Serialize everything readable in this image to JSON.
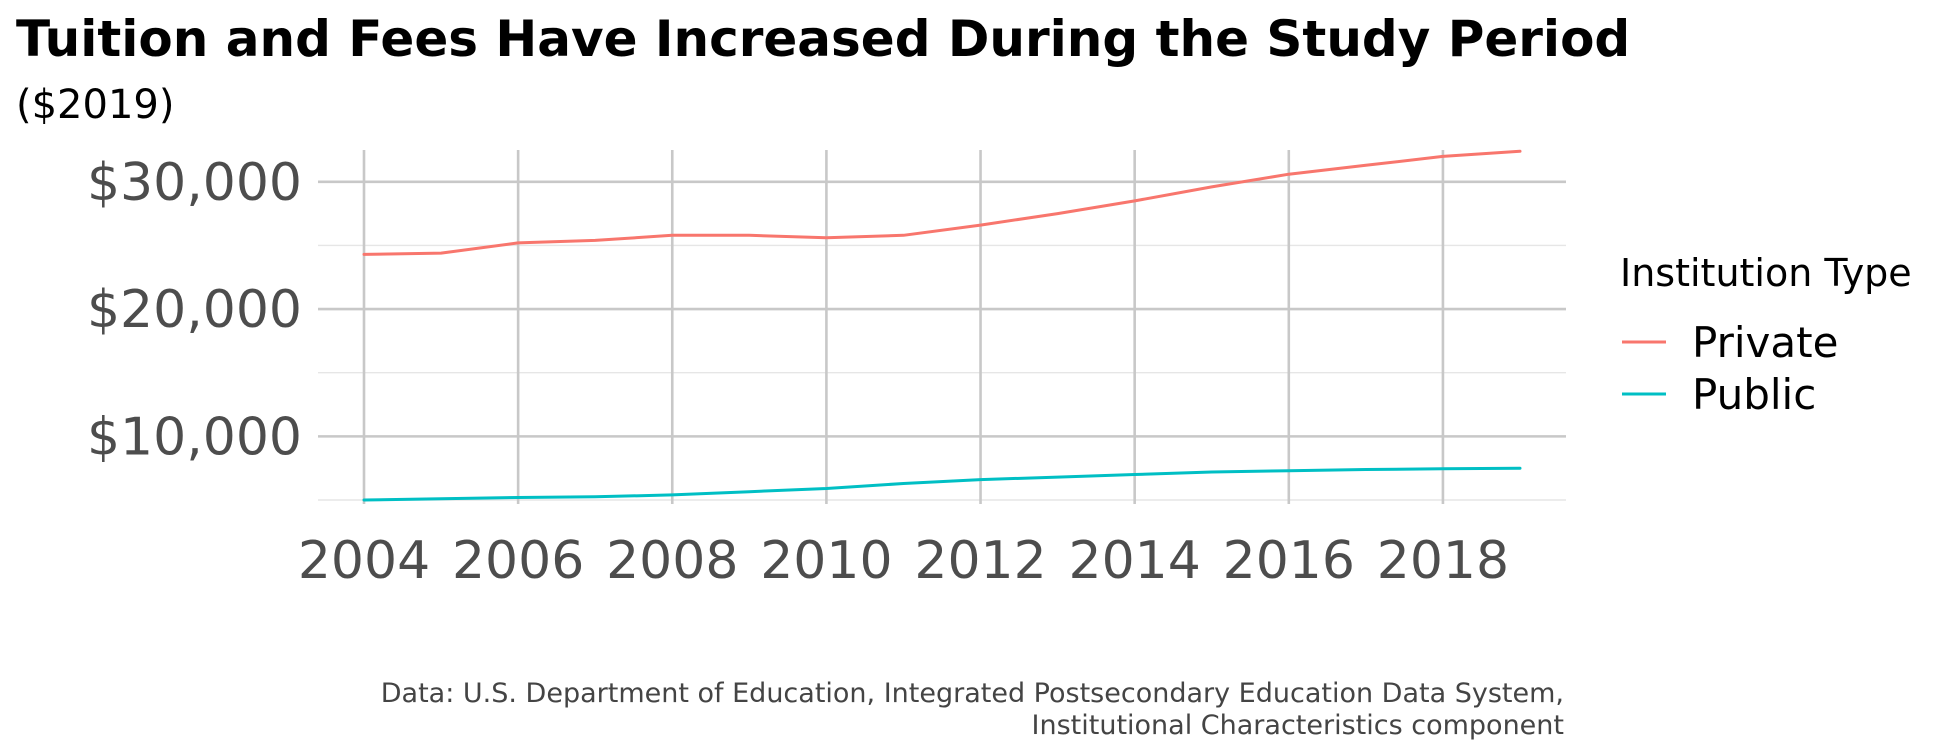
{
  "chart_data": {
    "type": "line",
    "title": "Tuition and Fees Have Increased During the Study Period",
    "subtitle": "($2019)",
    "xlabel": "",
    "ylabel": "",
    "x": [
      2004,
      2005,
      2006,
      2007,
      2008,
      2009,
      2010,
      2011,
      2012,
      2013,
      2014,
      2015,
      2016,
      2017,
      2018,
      2019
    ],
    "xlim": [
      2004,
      2019
    ],
    "ylim": [
      5000,
      32500
    ],
    "x_ticks": [
      "2004",
      "2006",
      "2008",
      "2010",
      "2012",
      "2014",
      "2016",
      "2018"
    ],
    "y_ticks": [
      "$10,000",
      "$20,000",
      "$30,000"
    ],
    "grid": true,
    "legend": {
      "title": "Institution Type",
      "position": "right"
    },
    "series": [
      {
        "name": "Private",
        "color": "#F8766D",
        "values": [
          24300,
          24400,
          25200,
          25400,
          25800,
          25800,
          25600,
          25800,
          26600,
          27500,
          28500,
          29600,
          30600,
          31300,
          32000,
          32400
        ]
      },
      {
        "name": "Public",
        "color": "#00BFC4",
        "values": [
          5000,
          5100,
          5200,
          5250,
          5400,
          5650,
          5900,
          6300,
          6600,
          6800,
          7000,
          7200,
          7300,
          7400,
          7450,
          7500
        ]
      }
    ],
    "caption": {
      "line1": "Data: U.S. Department of Education, Integrated Postsecondary Education Data System,",
      "line2": "Institutional Characteristics component"
    }
  }
}
